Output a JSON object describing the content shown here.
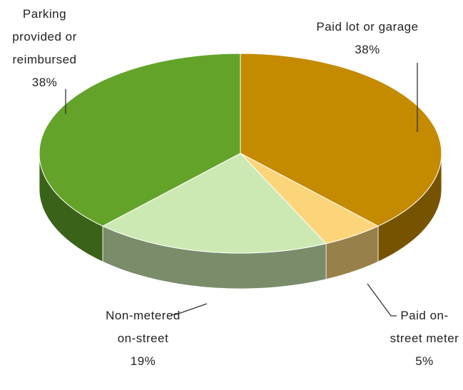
{
  "chart_data": {
    "type": "pie",
    "categories": [
      "Paid lot or garage",
      "Paid on-street meter",
      "Non-metered on-street",
      "Parking provided or reimbursed"
    ],
    "values": [
      38,
      5,
      19,
      38
    ],
    "value_labels": [
      "38%",
      "5%",
      "19%",
      "38%"
    ],
    "colors": [
      "#c48a00",
      "#fcd57a",
      "#cde9b3",
      "#63a32a"
    ]
  }
}
